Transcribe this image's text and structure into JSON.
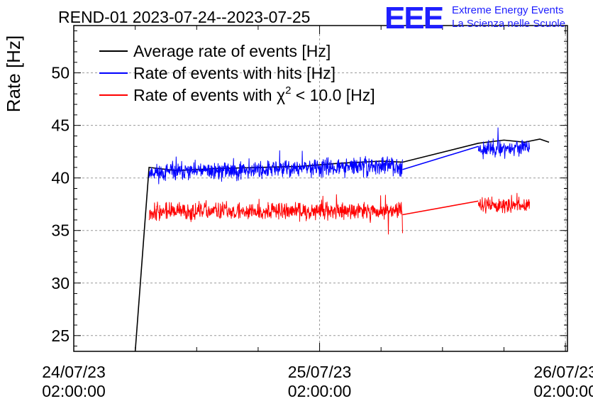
{
  "chart_data": {
    "type": "line",
    "title": "REND-01 2023-07-24--2023-07-25",
    "ylabel": "Rate [Hz]",
    "xlabel": "",
    "ylim": [
      23.5,
      54.5
    ],
    "xlim_hours": [
      0,
      48.2
    ],
    "y_ticks": [
      25,
      30,
      35,
      40,
      45,
      50
    ],
    "x_ticks": [
      {
        "hour": 0,
        "date": "24/07/23",
        "time": "02:00:00"
      },
      {
        "hour": 24,
        "date": "25/07/23",
        "time": "02:00:00"
      },
      {
        "hour": 48,
        "date": "26/07/23",
        "time": "02:00:00"
      }
    ],
    "series": [
      {
        "name": "Average rate of events [Hz]",
        "color": "#000000",
        "points": [
          [
            6.0,
            23.5
          ],
          [
            7.35,
            41.0
          ],
          [
            10,
            40.7
          ],
          [
            14,
            40.9
          ],
          [
            18,
            41.0
          ],
          [
            22,
            41.1
          ],
          [
            26,
            41.4
          ],
          [
            30,
            41.6
          ],
          [
            32.1,
            41.5
          ],
          [
            39.5,
            43.3
          ],
          [
            42,
            43.6
          ],
          [
            44,
            43.4
          ],
          [
            45.5,
            43.7
          ],
          [
            46.4,
            43.4
          ]
        ]
      },
      {
        "name": "Rate of events with hits [Hz]",
        "color": "#0000ff",
        "segments": [
          {
            "start": 7.35,
            "end": 32.1,
            "base_start": 40.5,
            "base_end": 41.2,
            "noise": 1.2,
            "seed": 11
          },
          {
            "start": 39.5,
            "end": 44.5,
            "base_start": 42.8,
            "base_end": 42.9,
            "noise": 1.1,
            "seed": 23
          }
        ],
        "bridge": [
          [
            32.1,
            40.8
          ],
          [
            39.5,
            43.0
          ]
        ]
      },
      {
        "name": "Rate of events with χ² < 10.0 [Hz]",
        "color": "#ff0000",
        "segments": [
          {
            "start": 7.35,
            "end": 32.1,
            "base_start": 36.8,
            "base_end": 36.9,
            "noise": 1.2,
            "seed": 37
          },
          {
            "start": 39.5,
            "end": 44.5,
            "base_start": 37.4,
            "base_end": 37.4,
            "noise": 1.0,
            "seed": 51
          }
        ],
        "bridge": [
          [
            32.1,
            36.5
          ],
          [
            39.5,
            37.8
          ]
        ]
      }
    ],
    "legend": {
      "position": "top-left",
      "entries": [
        {
          "label": "Average rate of events [Hz]",
          "color": "#000000"
        },
        {
          "label": "Rate of events with hits [Hz]",
          "color": "#0000ff"
        },
        {
          "label_main": "Rate of events with χ",
          "label_sup": "2",
          "label_tail": " < 10.0 [Hz]",
          "color": "#ff0000"
        }
      ]
    }
  },
  "logo": {
    "text": "EEE",
    "line1": "Extreme Energy Events",
    "line2": "La Scienza nelle Scuole",
    "color": "#1f1fff"
  }
}
